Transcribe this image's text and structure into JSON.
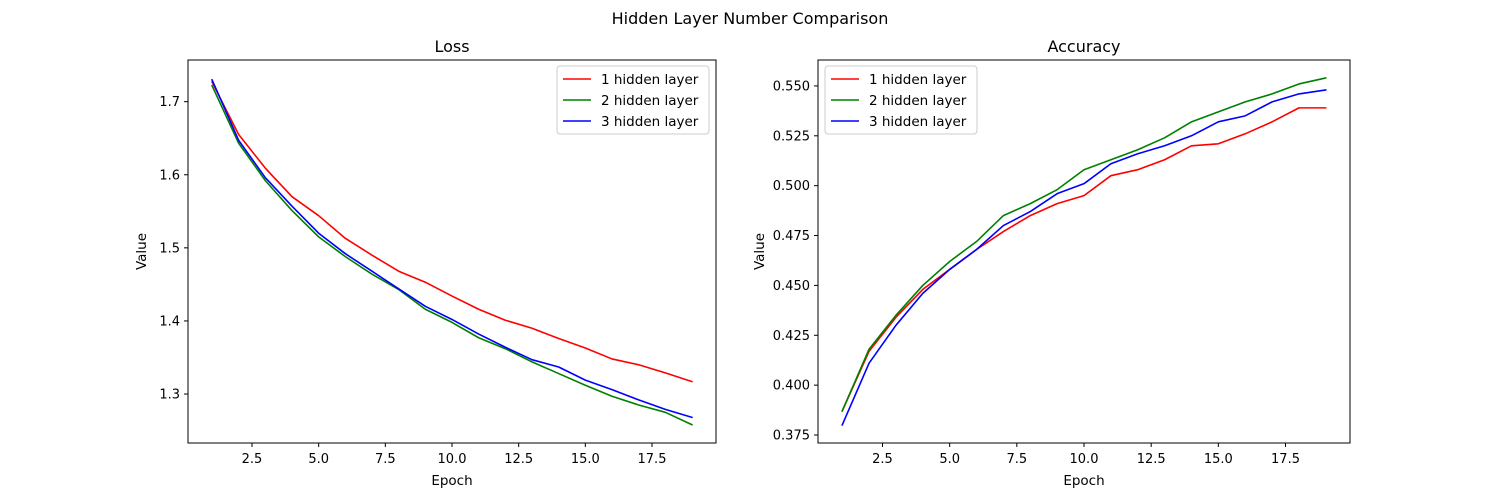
{
  "figure": {
    "suptitle": "Hidden Layer Number Comparison"
  },
  "chart_data": [
    {
      "type": "line",
      "title": "Loss",
      "xlabel": "Epoch",
      "ylabel": "Value",
      "xlim": [
        0.1,
        19.9
      ],
      "ylim": [
        1.233,
        1.757
      ],
      "xticks": [
        "2.5",
        "5.0",
        "7.5",
        "10.0",
        "12.5",
        "15.0",
        "17.5"
      ],
      "xtick_values": [
        2.5,
        5.0,
        7.5,
        10.0,
        12.5,
        15.0,
        17.5
      ],
      "yticks": [
        "1.3",
        "1.4",
        "1.5",
        "1.6",
        "1.7"
      ],
      "ytick_values": [
        1.3,
        1.4,
        1.5,
        1.6,
        1.7
      ],
      "legend_position": "top-right",
      "x": [
        1,
        2,
        3,
        4,
        5,
        6,
        7,
        8,
        9,
        10,
        11,
        12,
        13,
        14,
        15,
        16,
        17,
        18,
        19
      ],
      "series": [
        {
          "name": "1 hidden layer",
          "color": "#ff0000",
          "values": [
            1.727,
            1.655,
            1.609,
            1.57,
            1.544,
            1.513,
            1.49,
            1.468,
            1.453,
            1.434,
            1.416,
            1.401,
            1.39,
            1.376,
            1.363,
            1.348,
            1.34,
            1.329,
            1.317
          ]
        },
        {
          "name": "2 hidden layer",
          "color": "#008000",
          "values": [
            1.722,
            1.643,
            1.592,
            1.551,
            1.515,
            1.488,
            1.464,
            1.443,
            1.416,
            1.398,
            1.377,
            1.362,
            1.344,
            1.328,
            1.312,
            1.297,
            1.285,
            1.275,
            1.258
          ]
        },
        {
          "name": "3 hidden layer",
          "color": "#0000ff",
          "values": [
            1.73,
            1.647,
            1.596,
            1.557,
            1.52,
            1.492,
            1.468,
            1.444,
            1.42,
            1.402,
            1.382,
            1.364,
            1.347,
            1.337,
            1.319,
            1.306,
            1.292,
            1.279,
            1.268
          ]
        }
      ]
    },
    {
      "type": "line",
      "title": "Accuracy",
      "xlabel": "Epoch",
      "ylabel": "Value",
      "xlim": [
        0.1,
        19.9
      ],
      "ylim": [
        0.371,
        0.563
      ],
      "xticks": [
        "2.5",
        "5.0",
        "7.5",
        "10.0",
        "12.5",
        "15.0",
        "17.5"
      ],
      "xtick_values": [
        2.5,
        5.0,
        7.5,
        10.0,
        12.5,
        15.0,
        17.5
      ],
      "yticks": [
        "0.375",
        "0.400",
        "0.425",
        "0.450",
        "0.475",
        "0.500",
        "0.525",
        "0.550"
      ],
      "ytick_values": [
        0.375,
        0.4,
        0.425,
        0.45,
        0.475,
        0.5,
        0.525,
        0.55
      ],
      "legend_position": "top-left",
      "x": [
        1,
        2,
        3,
        4,
        5,
        6,
        7,
        8,
        9,
        10,
        11,
        12,
        13,
        14,
        15,
        16,
        17,
        18,
        19
      ],
      "series": [
        {
          "name": "1 hidden layer",
          "color": "#ff0000",
          "values": [
            0.387,
            0.417,
            0.434,
            0.448,
            0.458,
            0.468,
            0.477,
            0.485,
            0.491,
            0.495,
            0.505,
            0.508,
            0.513,
            0.52,
            0.521,
            0.526,
            0.532,
            0.539,
            0.539
          ]
        },
        {
          "name": "2 hidden layer",
          "color": "#008000",
          "values": [
            0.387,
            0.418,
            0.435,
            0.45,
            0.462,
            0.472,
            0.485,
            0.491,
            0.498,
            0.508,
            0.513,
            0.518,
            0.524,
            0.532,
            0.537,
            0.542,
            0.546,
            0.551,
            0.554
          ]
        },
        {
          "name": "3 hidden layer",
          "color": "#0000ff",
          "values": [
            0.38,
            0.411,
            0.43,
            0.446,
            0.458,
            0.468,
            0.48,
            0.487,
            0.496,
            0.501,
            0.511,
            0.516,
            0.52,
            0.525,
            0.532,
            0.535,
            0.542,
            0.546,
            0.548
          ]
        }
      ]
    }
  ]
}
